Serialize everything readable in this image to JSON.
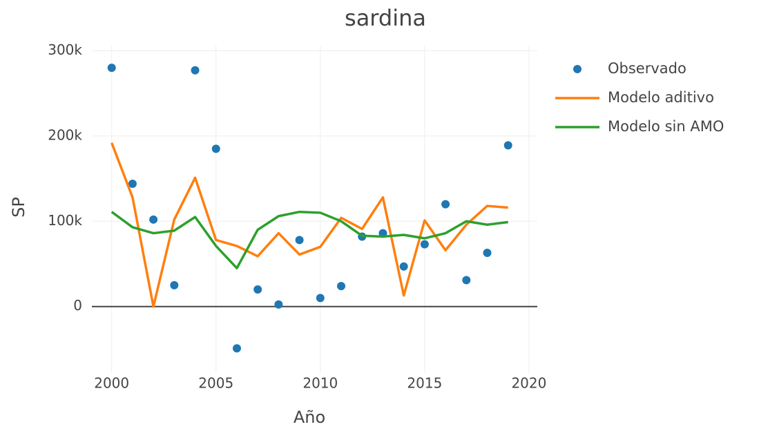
{
  "chart_data": {
    "type": "line",
    "title": "sardina",
    "xlabel": "Año",
    "ylabel": "SP",
    "x": [
      2000,
      2001,
      2002,
      2003,
      2004,
      2005,
      2006,
      2007,
      2008,
      2009,
      2010,
      2011,
      2012,
      2013,
      2014,
      2015,
      2016,
      2017,
      2018,
      2019
    ],
    "series": [
      {
        "name": "Observado",
        "color": "#1f77b4",
        "mode": "markers",
        "values": [
          280000,
          144000,
          102000,
          25000,
          277000,
          185000,
          -49000,
          20000,
          2400,
          78000,
          10000,
          24000,
          82000,
          86000,
          47000,
          73000,
          120000,
          31000,
          63000,
          189000
        ]
      },
      {
        "name": "Modelo aditivo",
        "color": "#ff7f0e",
        "mode": "lines",
        "values": [
          192000,
          128000,
          0,
          102000,
          151000,
          78000,
          71000,
          59000,
          86000,
          61000,
          70000,
          104000,
          91000,
          128000,
          13000,
          101000,
          66000,
          96000,
          118000,
          116000
        ]
      },
      {
        "name": "Modelo sin AMO",
        "color": "#2ca02c",
        "mode": "lines",
        "values": [
          111000,
          93000,
          86000,
          89000,
          105000,
          71000,
          45000,
          90000,
          106000,
          111000,
          110000,
          100000,
          83000,
          82000,
          84000,
          80000,
          86000,
          100000,
          96000,
          99000
        ]
      }
    ],
    "xlim": [
      1999.05,
      2020.4
    ],
    "xticks": [
      2000,
      2005,
      2010,
      2015,
      2020
    ],
    "ylim": [
      -78000,
      306000
    ],
    "yticks": [
      0,
      {
        "value": 100000,
        "label": "100k"
      },
      {
        "value": 200000,
        "label": "200k"
      },
      {
        "value": 300000,
        "label": "300k"
      }
    ],
    "grid": true,
    "legend": "right"
  }
}
